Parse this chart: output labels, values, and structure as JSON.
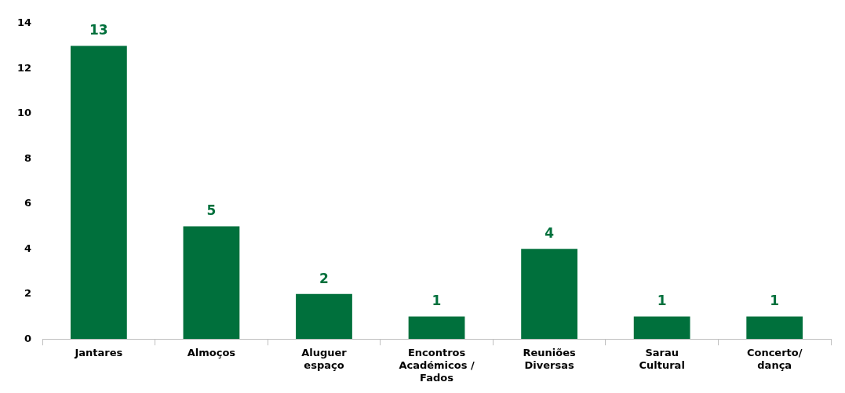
{
  "chart_data": {
    "type": "bar",
    "categories": [
      "Jantares",
      "Almoços",
      "Aluguer espaço",
      "Encontros Académicos / Fados",
      "Reuniões Diversas",
      "Sarau Cultural",
      "Concerto/ dança"
    ],
    "values": [
      13,
      5,
      2,
      1,
      4,
      1,
      1
    ],
    "color": "#00703c",
    "ylim": [
      0,
      14
    ],
    "yticks": [
      0,
      2,
      4,
      6,
      8,
      10,
      12,
      14
    ],
    "grid": false,
    "data_labels": true
  }
}
